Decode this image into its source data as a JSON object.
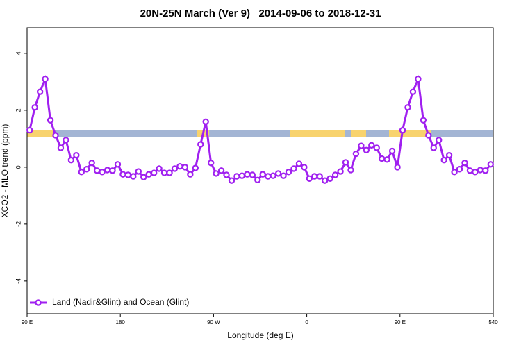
{
  "chart_data": {
    "type": "line",
    "title": "20N-25N March (Ver 9)   2014-09-06 to 2018-12-31",
    "xlabel": "Longitude (deg E)",
    "ylabel": "XCO2 - MLO trend (ppm)",
    "x": [
      92.5,
      97.5,
      102.5,
      107.5,
      112.5,
      117.5,
      122.5,
      127.5,
      132.5,
      137.5,
      142.5,
      147.5,
      152.5,
      157.5,
      162.5,
      167.5,
      172.5,
      177.5,
      182.5,
      187.5,
      192.5,
      197.5,
      202.5,
      207.5,
      212.5,
      217.5,
      222.5,
      227.5,
      232.5,
      237.5,
      242.5,
      247.5,
      252.5,
      257.5,
      262.5,
      267.5,
      272.5,
      277.5,
      282.5,
      287.5,
      292.5,
      297.5,
      302.5,
      307.5,
      312.5,
      317.5,
      322.5,
      327.5,
      332.5,
      337.5,
      342.5,
      347.5,
      352.5,
      357.5,
      362.5,
      367.5,
      372.5,
      377.5,
      382.5,
      387.5,
      392.5,
      397.5,
      402.5,
      407.5,
      412.5,
      417.5,
      422.5,
      427.5,
      432.5,
      437.5,
      442.5,
      447.5,
      452.5,
      457.5,
      462.5,
      467.5,
      472.5,
      477.5,
      482.5,
      487.5,
      492.5,
      497.5,
      502.5,
      507.5,
      512.5,
      517.5,
      522.5,
      527.5,
      532.5,
      537.5
    ],
    "series": [
      {
        "name": "Land (Nadir&Glint) and Ocean (Glint)",
        "color": "#a020f0",
        "values": [
          1.3,
          2.1,
          2.65,
          3.1,
          1.65,
          1.12,
          0.68,
          0.95,
          0.25,
          0.42,
          -0.17,
          -0.07,
          0.15,
          -0.12,
          -0.17,
          -0.1,
          -0.12,
          0.1,
          -0.25,
          -0.27,
          -0.32,
          -0.15,
          -0.35,
          -0.25,
          -0.2,
          -0.05,
          -0.2,
          -0.2,
          -0.05,
          0.03,
          0,
          -0.25,
          -0.03,
          0.8,
          1.6,
          0.15,
          -0.22,
          -0.12,
          -0.27,
          -0.47,
          -0.32,
          -0.3,
          -0.25,
          -0.27,
          -0.45,
          -0.25,
          -0.32,
          -0.3,
          -0.22,
          -0.3,
          -0.17,
          -0.05,
          0.12,
          0,
          -0.4,
          -0.32,
          -0.32,
          -0.47,
          -0.4,
          -0.27,
          -0.15,
          0.17,
          -0.1,
          0.47,
          0.75,
          0.6,
          0.77,
          0.68,
          0.3,
          0.27,
          0.57,
          0,
          1.3,
          2.1,
          2.65,
          3.1,
          1.65,
          1.12,
          0.68,
          0.95,
          0.25,
          0.42,
          -0.17,
          -0.07,
          0.15,
          -0.12,
          -0.17,
          -0.1,
          -0.12,
          0.1
        ]
      }
    ],
    "xlim": [
      90,
      540
    ],
    "xticks": [
      {
        "value": 90,
        "label": "90 E"
      },
      180,
      {
        "value": 270,
        "label": "90 W"
      },
      {
        "value": 360,
        "label": "0"
      },
      {
        "value": 450,
        "label": "90 E"
      },
      540
    ],
    "ylim": [
      -5.15,
      4.9
    ],
    "yticks": [
      -4,
      -2,
      0,
      2,
      4
    ],
    "legend": "bottom-left"
  }
}
